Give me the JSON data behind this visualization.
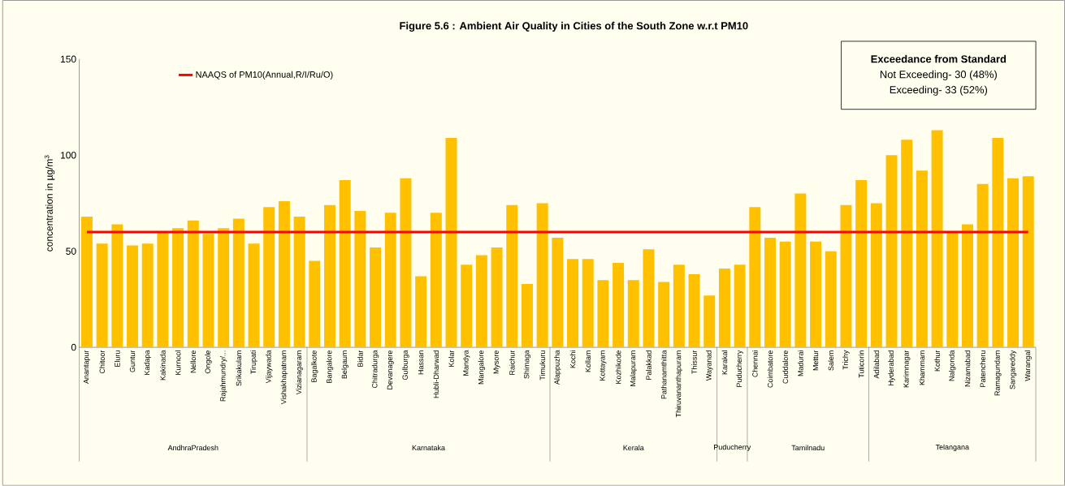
{
  "chart_data": {
    "type": "bar",
    "title": "Figure 5.6 : Ambient Air Quality in Cities of the South Zone w.r.t PM10",
    "ylabel": "concentration in µg/m$^{3}$",
    "categories": [
      "Anantapur",
      "Chitoor",
      "Eluru",
      "Guntur",
      "Kadapa",
      "Kakinada",
      "Kurnool",
      "Nellore",
      "Ongole",
      "Rajahmundry/...",
      "Srikakulam",
      "Tirupati",
      "Vijaywada",
      "Vishakhapatnam",
      "Vizianagaram",
      "Bagalkote",
      "Bangalore",
      "Belgaum",
      "Bidar",
      "Chitradurga",
      "Devanagere",
      "Gulburga",
      "Hassan",
      "Hubli-Dharwad",
      "Kolar",
      "Mandya",
      "Mangalore",
      "Mysore",
      "Raichur",
      "Shimaga",
      "Timukuru",
      "Alappuzha",
      "Kochi",
      "Kollam",
      "Kottayam",
      "Kozhikode",
      "Malapuram",
      "Palakkad",
      "Pathanamthitta",
      "Thiruvananthapuram",
      "Thissur",
      "Wayanad",
      "Karakal",
      "Puducherry",
      "Chennai",
      "Coimbatore",
      "Cuddalore",
      "Madurai",
      "Mettur",
      "Salem",
      "Trichy",
      "Tuticorin",
      "Adilabad",
      "Hyderabad",
      "Karimnagar",
      "Khammam",
      "Kothur",
      "Nalgonda",
      "Nizamabad",
      "Patencheru",
      "Ramagundam",
      "Sangareddy",
      "Warangal"
    ],
    "values": [
      68,
      54,
      64,
      53,
      54,
      60,
      62,
      66,
      59,
      62,
      67,
      54,
      73,
      76,
      68,
      45,
      74,
      87,
      71,
      52,
      70,
      88,
      37,
      70,
      109,
      43,
      48,
      52,
      74,
      33,
      75,
      57,
      46,
      46,
      35,
      44,
      35,
      51,
      34,
      43,
      38,
      27,
      41,
      43,
      73,
      57,
      55,
      80,
      55,
      50,
      74,
      87,
      75,
      100,
      108,
      92,
      113,
      60,
      64,
      85,
      109,
      88,
      89
    ],
    "color": "#ffc000",
    "ylim": [
      0,
      150
    ],
    "yticks": [
      0,
      50,
      100,
      150
    ],
    "ref_lines": [
      {
        "axis": "y",
        "value": 60,
        "label": "NAAQS of PM10(Annual,R/I/Ru/O)",
        "color": "#ff0000",
        "line_style": "solid"
      }
    ],
    "legend": "top left",
    "annotations": [
      "Exceedance from Standard",
      "Not Exceeding- 30 (48%)",
      "Exceeding- 33 (52%)",
      "AndhraPradesh",
      "Karnataka",
      "Kerala",
      "Puducherry",
      "Tamilnadu",
      "Telangana"
    ]
  }
}
